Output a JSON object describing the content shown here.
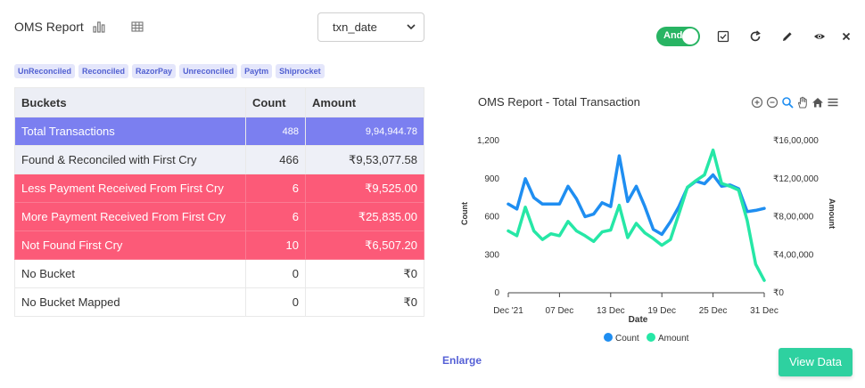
{
  "header": {
    "title": "OMS Report",
    "date_select": {
      "value": "txn_date"
    },
    "toggle_label": "And",
    "icons": [
      "bar-chart-icon",
      "table-grid-icon",
      "checkbox-icon",
      "refresh-icon",
      "edit-pencil-icon",
      "eye-icon",
      "close-icon"
    ]
  },
  "tags": [
    "UnReconciled",
    "Reconciled",
    "RazorPay",
    "Unreconciled",
    "Paytm",
    "Shiprocket"
  ],
  "table": {
    "headers": {
      "bucket": "Buckets",
      "count": "Count",
      "amount": "Amount"
    },
    "rows": [
      {
        "bucket": "Total  Transactions",
        "count": "488",
        "amount": "9,94,944.78",
        "style": "total"
      },
      {
        "bucket": "Found & Reconciled with First Cry",
        "count": "466",
        "amount": "₹9,53,077.58",
        "style": "ok"
      },
      {
        "bucket": "Less Payment Received From First Cry",
        "count": "6",
        "amount": "₹9,525.00",
        "style": "red"
      },
      {
        "bucket": "More Payment Received From First Cry",
        "count": "6",
        "amount": "₹25,835.00",
        "style": "red"
      },
      {
        "bucket": "Not Found  First Cry",
        "count": "10",
        "amount": "₹6,507.20",
        "style": "red"
      },
      {
        "bucket": "No Bucket",
        "count": "0",
        "amount": "₹0",
        "style": "plain"
      },
      {
        "bucket": "No Bucket Mapped",
        "count": "0",
        "amount": "₹0",
        "style": "plain"
      }
    ]
  },
  "chart_data": {
    "type": "line",
    "title": "OMS Report - Total Transaction",
    "xlabel": "Date",
    "ylabel_left": "Count",
    "ylabel_right": "Amount",
    "x_ticks": [
      {
        "day": 1,
        "label": "Dec '21"
      },
      {
        "day": 7,
        "label": "07 Dec"
      },
      {
        "day": 13,
        "label": "13 Dec"
      },
      {
        "day": 19,
        "label": "19 Dec"
      },
      {
        "day": 25,
        "label": "25 Dec"
      },
      {
        "day": 31,
        "label": "31 Dec"
      }
    ],
    "y_left": {
      "min": 0,
      "max": 1200,
      "ticks": [
        "0",
        "300",
        "600",
        "900",
        "1,200"
      ]
    },
    "y_right": {
      "min": 0,
      "max": 1600000,
      "ticks": [
        "₹0",
        "₹4,00,000",
        "₹8,00,000",
        "₹12,00,000",
        "₹16,00,000"
      ]
    },
    "x": [
      1,
      2,
      3,
      4,
      5,
      6,
      7,
      8,
      9,
      10,
      11,
      12,
      13,
      14,
      15,
      16,
      17,
      18,
      19,
      20,
      21,
      22,
      23,
      24,
      25,
      26,
      27,
      28,
      29,
      30,
      31
    ],
    "series": [
      {
        "name": "Count",
        "axis": "left",
        "color": "#1f8ef1",
        "values": [
          700,
          660,
          900,
          750,
          700,
          700,
          700,
          840,
          740,
          600,
          620,
          710,
          680,
          1080,
          720,
          840,
          680,
          500,
          460,
          560,
          680,
          830,
          880,
          860,
          930,
          840,
          850,
          820,
          640,
          650,
          665
        ]
      },
      {
        "name": "Amount",
        "axis": "right",
        "color": "#26e7a6",
        "values": [
          650000,
          600000,
          900000,
          650000,
          560000,
          620000,
          600000,
          750000,
          650000,
          600000,
          540000,
          640000,
          660000,
          920000,
          580000,
          730000,
          630000,
          570000,
          500000,
          560000,
          830000,
          1110000,
          1180000,
          1240000,
          1500000,
          1150000,
          1120000,
          1080000,
          760000,
          300000,
          130000
        ]
      }
    ],
    "legend": "bottom-center",
    "grid": false
  },
  "footer": {
    "enlarge": "Enlarge",
    "view_data": "View Data"
  }
}
